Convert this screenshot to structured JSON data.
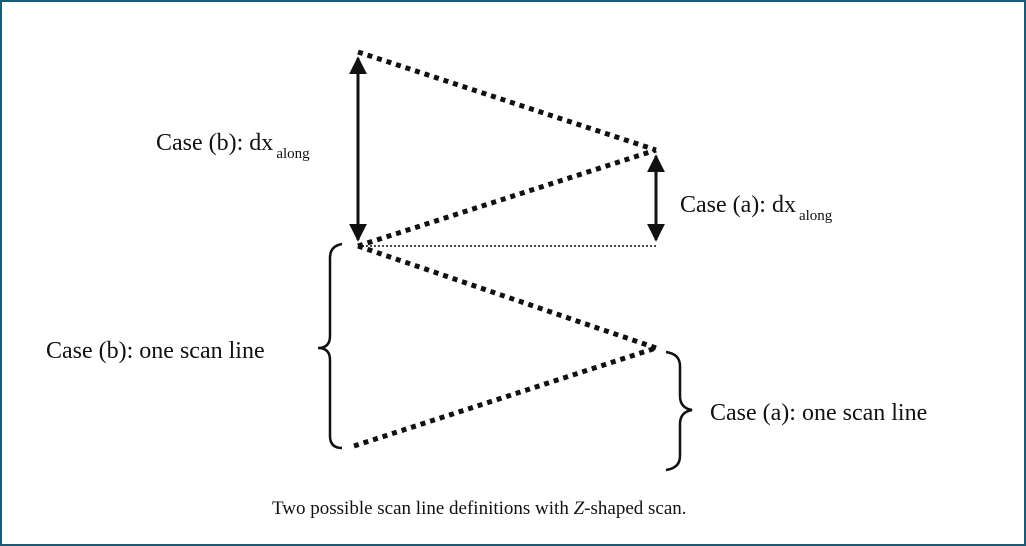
{
  "labels": {
    "case_b_dx_prefix": "Case (b): dx",
    "case_b_dx_sub": "along",
    "case_a_dx_prefix": "Case (a): dx",
    "case_a_dx_sub": "along",
    "case_b_scan_line": "Case (b): one scan line",
    "case_a_scan_line": "Case (a): one scan line"
  },
  "caption": {
    "part1": "Two possible scan line definitions with ",
    "part2_italic": "Z",
    "part3": "-shaped scan."
  },
  "colors": {
    "border": "#1f5a74",
    "ink": "#111111"
  }
}
